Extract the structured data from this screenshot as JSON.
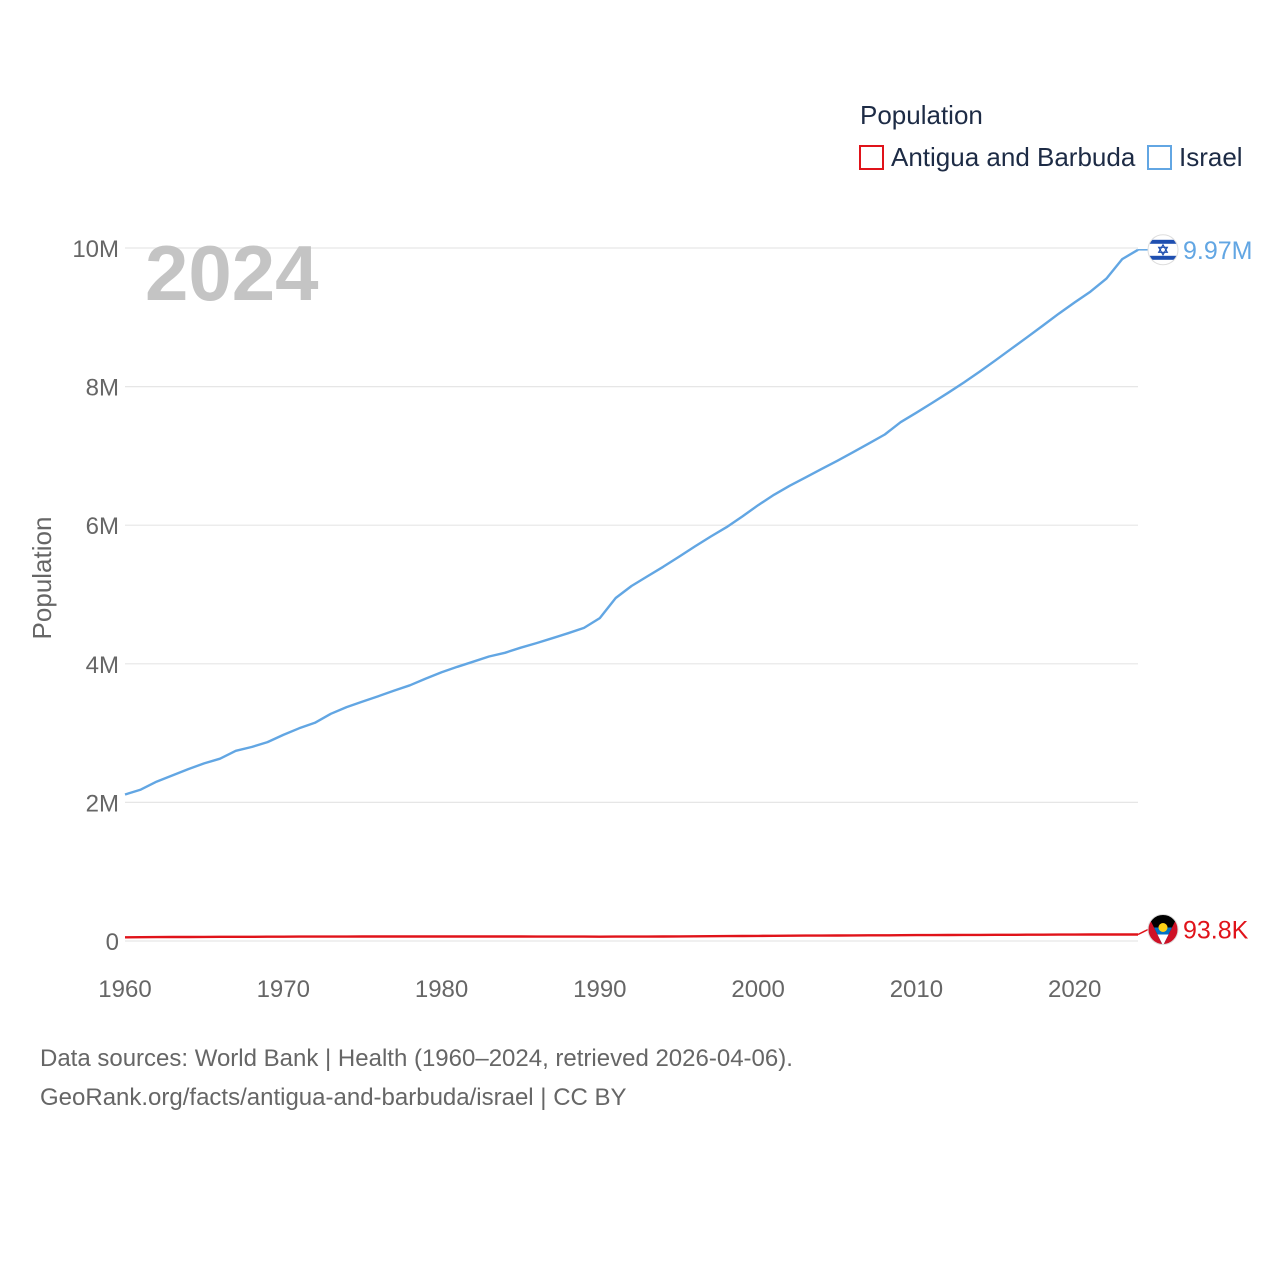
{
  "chart_data": {
    "type": "line",
    "title": "Population",
    "ylabel": "Population",
    "xlabel": "",
    "year_display": "2024",
    "xlim": [
      1960,
      2024
    ],
    "ylim": [
      0,
      10000000
    ],
    "grid": true,
    "legend_position": "top-right",
    "legend_title": "Population",
    "x_ticks": [
      {
        "value": 1960,
        "label": "1960"
      },
      {
        "value": 1970,
        "label": "1970"
      },
      {
        "value": 1980,
        "label": "1980"
      },
      {
        "value": 1990,
        "label": "1990"
      },
      {
        "value": 2000,
        "label": "2000"
      },
      {
        "value": 2010,
        "label": "2010"
      },
      {
        "value": 2020,
        "label": "2020"
      }
    ],
    "y_ticks": [
      {
        "value": 0,
        "label": "0"
      },
      {
        "value": 2000000,
        "label": "2M"
      },
      {
        "value": 4000000,
        "label": "4M"
      },
      {
        "value": 6000000,
        "label": "6M"
      },
      {
        "value": 8000000,
        "label": "8M"
      },
      {
        "value": 10000000,
        "label": "10M"
      }
    ],
    "x": [
      1960,
      1961,
      1962,
      1963,
      1964,
      1965,
      1966,
      1967,
      1968,
      1969,
      1970,
      1971,
      1972,
      1973,
      1974,
      1975,
      1976,
      1977,
      1978,
      1979,
      1980,
      1981,
      1982,
      1983,
      1984,
      1985,
      1986,
      1987,
      1988,
      1989,
      1990,
      1991,
      1992,
      1993,
      1994,
      1995,
      1996,
      1997,
      1998,
      1999,
      2000,
      2001,
      2002,
      2003,
      2004,
      2005,
      2006,
      2007,
      2008,
      2009,
      2010,
      2011,
      2012,
      2013,
      2014,
      2015,
      2016,
      2017,
      2018,
      2019,
      2020,
      2021,
      2022,
      2023,
      2024
    ],
    "series": [
      {
        "name": "Antigua and Barbuda",
        "color": "#e0131a",
        "end_label": "93.8K",
        "flag": "antigua-flag",
        "values": [
          54000,
          55300,
          56500,
          57400,
          58400,
          59200,
          60000,
          60700,
          61300,
          61800,
          62300,
          62800,
          63300,
          63700,
          64100,
          64400,
          64700,
          64900,
          65100,
          65200,
          65300,
          65200,
          65000,
          64900,
          64700,
          64500,
          64200,
          64000,
          63500,
          63000,
          62500,
          62800,
          63300,
          64200,
          65400,
          66700,
          68000,
          69400,
          70800,
          72300,
          73700,
          75000,
          76300,
          77500,
          78600,
          79700,
          80800,
          81800,
          82800,
          83800,
          84700,
          85700,
          86600,
          87500,
          88400,
          89200,
          90000,
          90800,
          91500,
          92100,
          92700,
          93200,
          93500,
          93700,
          93800
        ]
      },
      {
        "name": "Israel",
        "color": "#62a6e3",
        "end_label": "9.97M",
        "flag": "israel-flag",
        "values": [
          2114000,
          2185000,
          2300000,
          2390000,
          2480000,
          2563000,
          2630000,
          2745000,
          2800000,
          2870000,
          2974000,
          3069000,
          3148000,
          3278000,
          3375000,
          3455000,
          3533000,
          3613000,
          3690000,
          3786000,
          3878000,
          3956000,
          4031000,
          4105000,
          4159000,
          4233000,
          4299000,
          4369000,
          4442000,
          4518000,
          4660000,
          4949000,
          5123000,
          5261000,
          5399000,
          5545000,
          5692000,
          5836000,
          5971000,
          6125000,
          6289000,
          6439000,
          6570000,
          6690000,
          6809000,
          6930000,
          7054000,
          7180000,
          7309000,
          7486000,
          7623000,
          7765000,
          7911000,
          8059000,
          8216000,
          8380000,
          8547000,
          8713000,
          8882000,
          9054000,
          9215000,
          9371000,
          9557000,
          9840000,
          9974000
        ]
      }
    ]
  },
  "footer": {
    "source_line": "Data sources: World Bank | Health (1960–2024, retrieved 2026-04-06).",
    "link_line": "GeoRank.org/facts/antigua-and-barbuda/israel | CC BY"
  }
}
